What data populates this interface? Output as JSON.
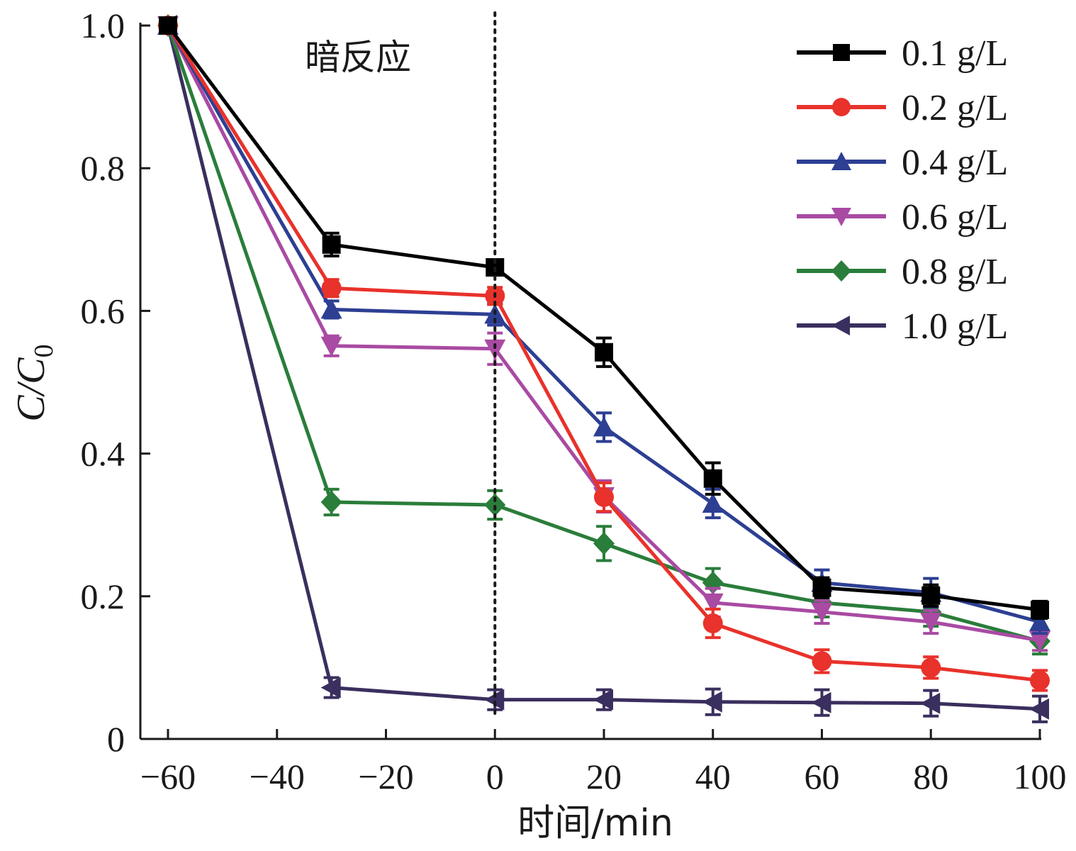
{
  "chart_data": {
    "type": "line",
    "xlabel": "时间/min",
    "ylabel_main": "C/C",
    "ylabel_sub": "0",
    "x_ticks": [
      "−60",
      "−40",
      "−20",
      "0",
      "20",
      "40",
      "60",
      "80",
      "100"
    ],
    "y_ticks": [
      "0",
      "0.2",
      "0.4",
      "0.6",
      "0.8",
      "1.0"
    ],
    "xlim": [
      -60,
      100
    ],
    "ylim": [
      0,
      1.0
    ],
    "x": [
      -60,
      -30,
      0,
      20,
      40,
      60,
      80,
      100
    ],
    "annotation": "暗反应",
    "divider_x": 0,
    "legend_position": "top-right",
    "series": [
      {
        "name": "0.1 g/L",
        "color": "#000000",
        "marker": "square",
        "values": [
          1.0,
          0.693,
          0.661,
          0.542,
          0.365,
          0.212,
          0.201,
          0.181
        ],
        "errors": [
          0.01,
          0.016,
          0.01,
          0.02,
          0.022,
          0.014,
          0.015,
          0.012
        ]
      },
      {
        "name": "0.2 g/L",
        "color": "#e8322b",
        "marker": "circle",
        "values": [
          1.0,
          0.632,
          0.621,
          0.339,
          0.162,
          0.109,
          0.1,
          0.082
        ],
        "errors": [
          0.01,
          0.012,
          0.012,
          0.02,
          0.02,
          0.016,
          0.015,
          0.014
        ]
      },
      {
        "name": "0.4 g/L",
        "color": "#2d3f93",
        "marker": "triangle-up",
        "values": [
          1.0,
          0.602,
          0.595,
          0.437,
          0.33,
          0.219,
          0.205,
          0.164
        ],
        "errors": [
          0.01,
          0.012,
          0.015,
          0.02,
          0.02,
          0.018,
          0.02,
          0.016
        ]
      },
      {
        "name": "0.6 g/L",
        "color": "#a94aa3",
        "marker": "triangle-down",
        "values": [
          1.0,
          0.551,
          0.547,
          0.34,
          0.191,
          0.178,
          0.164,
          0.138
        ],
        "errors": [
          0.01,
          0.014,
          0.022,
          0.022,
          0.02,
          0.016,
          0.016,
          0.014
        ]
      },
      {
        "name": "0.8 g/L",
        "color": "#2a7d3a",
        "marker": "diamond",
        "values": [
          1.0,
          0.332,
          0.328,
          0.274,
          0.219,
          0.191,
          0.178,
          0.137
        ],
        "errors": [
          0.01,
          0.018,
          0.02,
          0.024,
          0.02,
          0.02,
          0.02,
          0.018
        ]
      },
      {
        "name": "1.0 g/L",
        "color": "#3a2f5e",
        "marker": "triangle-left",
        "values": [
          1.0,
          0.072,
          0.055,
          0.055,
          0.052,
          0.051,
          0.05,
          0.042
        ],
        "errors": [
          0.01,
          0.014,
          0.014,
          0.014,
          0.018,
          0.018,
          0.018,
          0.018
        ]
      }
    ]
  }
}
